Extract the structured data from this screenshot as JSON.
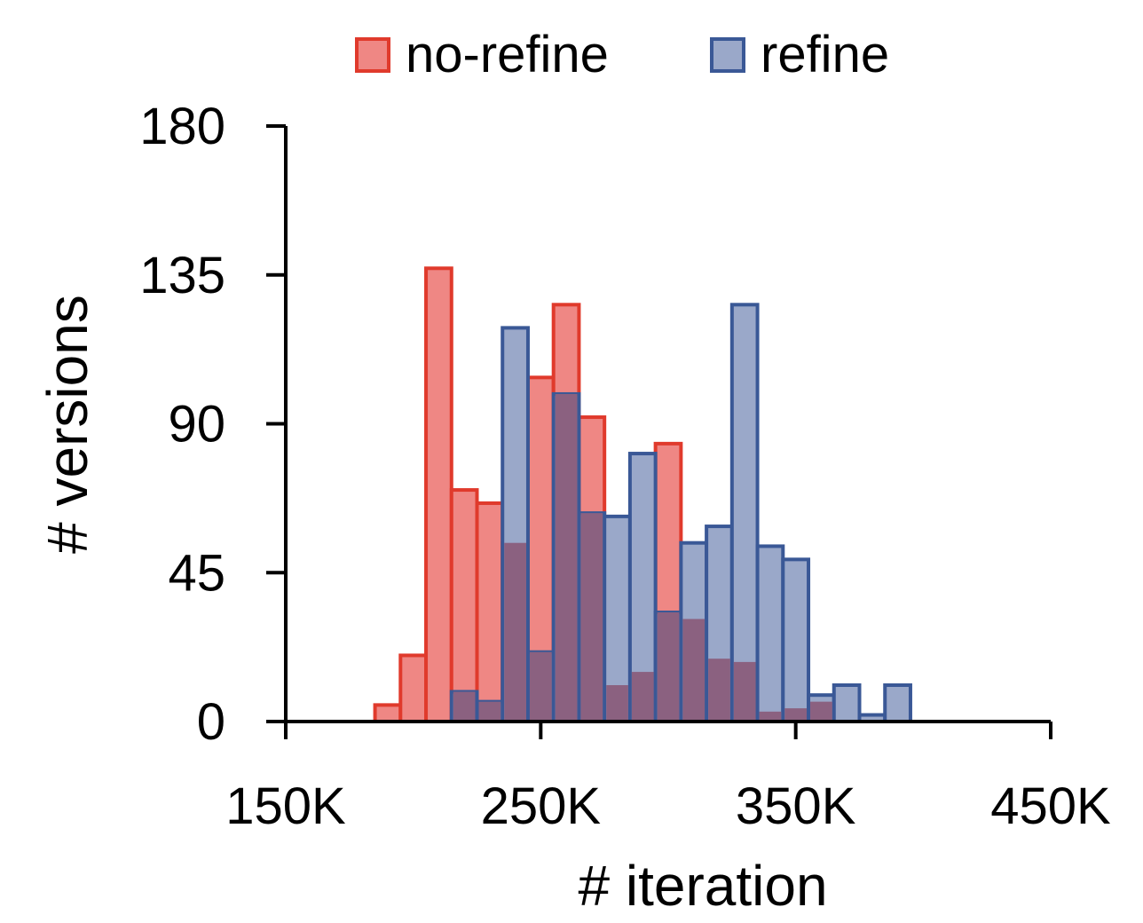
{
  "chart_data": {
    "type": "bar",
    "xlabel": "# iteration",
    "ylabel": "# versions",
    "xlim": [
      150000,
      450000
    ],
    "ylim": [
      0,
      180
    ],
    "x_ticks": [
      "150K",
      "250K",
      "350K",
      "450K"
    ],
    "x_tick_values": [
      150000,
      250000,
      350000,
      450000
    ],
    "y_ticks": [
      "0",
      "45",
      "90",
      "135",
      "180"
    ],
    "y_tick_values": [
      0,
      45,
      90,
      135,
      180
    ],
    "bin_width": 10000,
    "legend_position": "top",
    "grid": false,
    "series": [
      {
        "name": "no-refine",
        "fill": "#ef8784",
        "stroke": "#e03a2c",
        "bins": [
          {
            "x": 190000,
            "value": 5
          },
          {
            "x": 200000,
            "value": 20
          },
          {
            "x": 210000,
            "value": 137
          },
          {
            "x": 220000,
            "value": 70
          },
          {
            "x": 230000,
            "value": 66
          },
          {
            "x": 240000,
            "value": 54
          },
          {
            "x": 250000,
            "value": 104
          },
          {
            "x": 260000,
            "value": 126
          },
          {
            "x": 270000,
            "value": 92
          },
          {
            "x": 280000,
            "value": 11
          },
          {
            "x": 290000,
            "value": 15
          },
          {
            "x": 300000,
            "value": 84
          },
          {
            "x": 310000,
            "value": 31
          },
          {
            "x": 320000,
            "value": 19
          },
          {
            "x": 330000,
            "value": 18
          },
          {
            "x": 340000,
            "value": 3
          },
          {
            "x": 350000,
            "value": 4
          },
          {
            "x": 360000,
            "value": 6
          }
        ]
      },
      {
        "name": "refine",
        "fill": "#9aa8c9",
        "stroke": "#3a5896",
        "bins": [
          {
            "x": 220000,
            "value": 9
          },
          {
            "x": 230000,
            "value": 6
          },
          {
            "x": 240000,
            "value": 119
          },
          {
            "x": 250000,
            "value": 21
          },
          {
            "x": 260000,
            "value": 99
          },
          {
            "x": 270000,
            "value": 63
          },
          {
            "x": 280000,
            "value": 62
          },
          {
            "x": 290000,
            "value": 81
          },
          {
            "x": 300000,
            "value": 33
          },
          {
            "x": 310000,
            "value": 54
          },
          {
            "x": 320000,
            "value": 59
          },
          {
            "x": 330000,
            "value": 126
          },
          {
            "x": 340000,
            "value": 53
          },
          {
            "x": 350000,
            "value": 49
          },
          {
            "x": 360000,
            "value": 8
          },
          {
            "x": 370000,
            "value": 11
          },
          {
            "x": 380000,
            "value": 2
          },
          {
            "x": 390000,
            "value": 11
          }
        ]
      }
    ],
    "overlap_color": "#8b6180"
  }
}
